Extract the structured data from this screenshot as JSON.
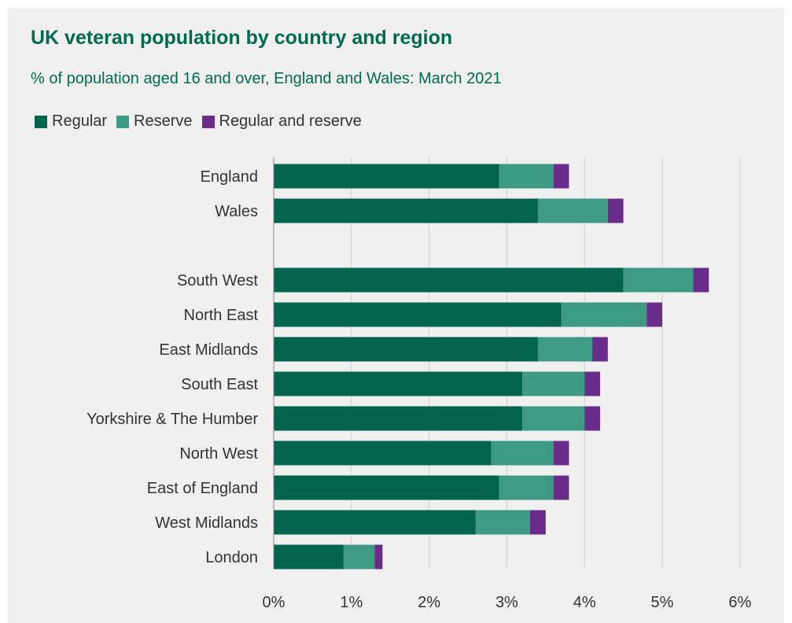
{
  "title": "UK veteran population by country and region",
  "subtitle": "% of population aged 16 and over, England and Wales: March 2021",
  "legend": [
    {
      "label": "Regular",
      "color": "#00654a"
    },
    {
      "label": "Reserve",
      "color": "#3d9b84"
    },
    {
      "label": "Regular and reserve",
      "color": "#6a2c8a"
    }
  ],
  "chart_data": {
    "type": "bar",
    "orientation": "horizontal",
    "stacked": true,
    "categories": [
      "England",
      "Wales",
      "",
      "South West",
      "North East",
      "East Midlands",
      "South East",
      "Yorkshire & The Humber",
      "North West",
      "East of England",
      "West Midlands",
      "London"
    ],
    "series": [
      {
        "name": "Regular",
        "color": "#00654a",
        "values": [
          2.9,
          3.4,
          null,
          4.5,
          3.7,
          3.4,
          3.2,
          3.2,
          2.8,
          2.9,
          2.6,
          0.9
        ]
      },
      {
        "name": "Reserve",
        "color": "#3d9b84",
        "values": [
          0.7,
          0.9,
          null,
          0.9,
          1.1,
          0.7,
          0.8,
          0.8,
          0.8,
          0.7,
          0.7,
          0.4
        ]
      },
      {
        "name": "Regular and reserve",
        "color": "#6a2c8a",
        "values": [
          0.2,
          0.2,
          null,
          0.2,
          0.2,
          0.2,
          0.2,
          0.2,
          0.2,
          0.2,
          0.2,
          0.1
        ]
      }
    ],
    "xlim": [
      0,
      6
    ],
    "xticks": [
      "0%",
      "1%",
      "2%",
      "3%",
      "4%",
      "5%",
      "6%"
    ],
    "grid": "vertical",
    "legend_position": "top-left"
  }
}
